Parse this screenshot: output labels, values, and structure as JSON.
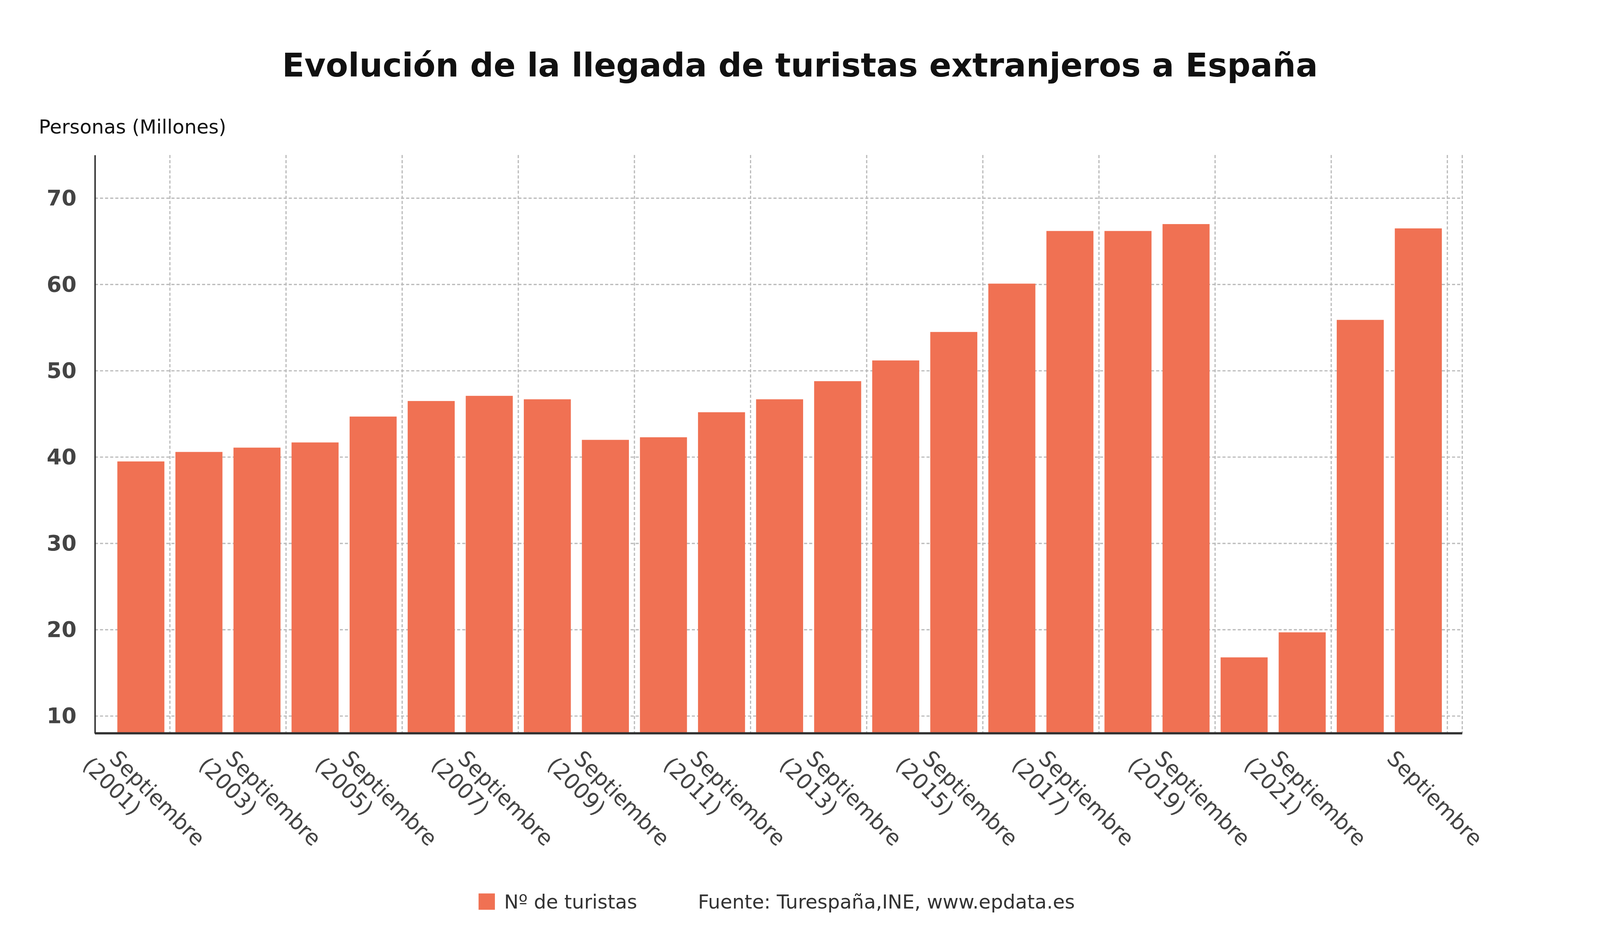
{
  "chart_data": {
    "type": "bar",
    "title": "Evolución de la llegada de turistas extranjeros a España",
    "y_label": "Personas (Millones)",
    "source": "Fuente: Turespaña,INE, www.epdata.es",
    "categories": [
      "Septiembre (2001)",
      null,
      "Septiembre (2003)",
      null,
      "Septiembre (2005)",
      null,
      "Septiembre (2007)",
      null,
      "Septiembre (2009)",
      null,
      "Septiembre (2011)",
      null,
      "Septiembre (2013)",
      null,
      "Septiembre (2015)",
      null,
      "Septiembre (2017)",
      null,
      "Septiembre (2019)",
      null,
      "Septiembre (2021)",
      null,
      "Septiembre"
    ],
    "series": [
      {
        "name": "Nº de turistas",
        "color": "#f07153",
        "values": [
          39.5,
          40.6,
          41.1,
          41.7,
          44.7,
          46.5,
          47.1,
          46.7,
          42.0,
          42.3,
          45.2,
          46.7,
          48.8,
          51.2,
          54.5,
          60.1,
          66.2,
          66.2,
          67.0,
          16.8,
          19.7,
          55.9,
          66.5
        ]
      }
    ],
    "ylim": [
      8,
      75
    ],
    "yticks": [
      10,
      20,
      30,
      40,
      50,
      60,
      70
    ],
    "grid": true,
    "legend": "bottom"
  }
}
